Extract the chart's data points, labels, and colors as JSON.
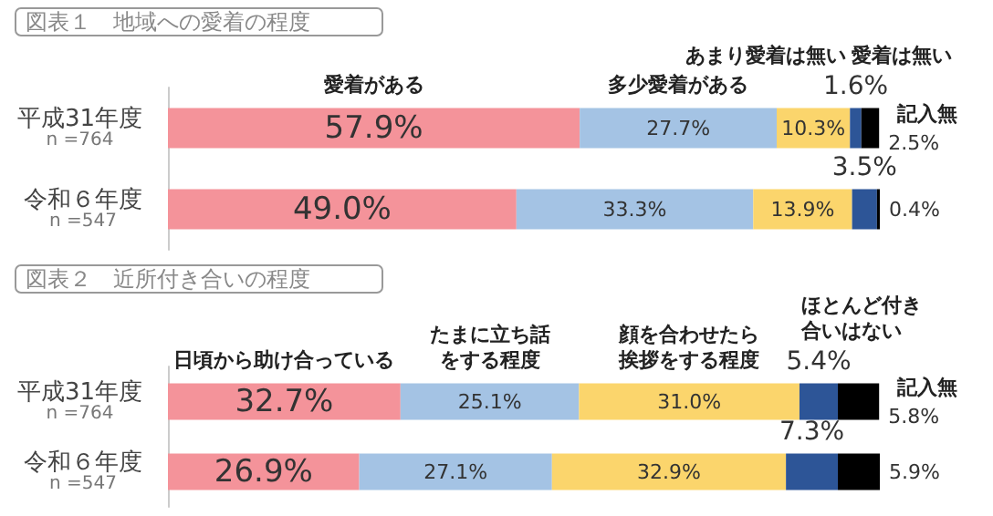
{
  "chart_data": [
    {
      "type": "bar",
      "title": "図表１　地域への愛着の程度",
      "orientation": "horizontal",
      "stacked": true,
      "categories": [
        "平成31年度\nn =764",
        "令和６年度\nn =547"
      ],
      "series": [
        {
          "name": "愛着がある",
          "color": "#f4939a",
          "values": [
            57.9,
            49.0
          ],
          "value_labels": [
            "57.9%",
            "49.0%"
          ]
        },
        {
          "name": "多少愛着がある",
          "color": "#a4c3e4",
          "values": [
            27.7,
            33.3
          ],
          "value_labels": [
            "27.7%",
            "33.3%"
          ]
        },
        {
          "name": "あまり愛着は無い",
          "color": "#fbd56c",
          "values": [
            10.3,
            13.9
          ],
          "value_labels": [
            "10.3%",
            "13.9%"
          ]
        },
        {
          "name": "愛着は無い",
          "color": "#2d5597",
          "values": [
            1.6,
            3.5
          ],
          "value_labels": [
            "1.6%",
            "3.5%"
          ]
        },
        {
          "name": "記入無",
          "color": "#000000",
          "values": [
            2.5,
            0.4
          ],
          "value_labels": [
            "2.5%",
            "0.4%"
          ]
        }
      ]
    },
    {
      "type": "bar",
      "title": "図表２　近所付き合いの程度",
      "orientation": "horizontal",
      "stacked": true,
      "categories": [
        "平成31年度\nn =764",
        "令和６年度\nn =547"
      ],
      "series": [
        {
          "name": "日頃から助け合っている",
          "color": "#f4939a",
          "values": [
            32.7,
            26.9
          ],
          "value_labels": [
            "32.7%",
            "26.9%"
          ]
        },
        {
          "name": "たまに立ち話をする程度",
          "color": "#a4c3e4",
          "values": [
            25.1,
            27.1
          ],
          "value_labels": [
            "25.1%",
            "27.1%"
          ]
        },
        {
          "name": "顔を合わせたら挨拶をする程度",
          "color": "#fbd56c",
          "values": [
            31.0,
            32.9
          ],
          "value_labels": [
            "31.0%",
            "32.9%"
          ]
        },
        {
          "name": "ほとんど付き合いはない",
          "color": "#2d5597",
          "values": [
            5.4,
            7.3
          ],
          "value_labels": [
            "5.4%",
            "7.3%"
          ]
        },
        {
          "name": "記入無",
          "color": "#000000",
          "values": [
            5.8,
            5.9
          ],
          "value_labels": [
            "5.8%",
            "5.9%"
          ]
        }
      ]
    }
  ]
}
